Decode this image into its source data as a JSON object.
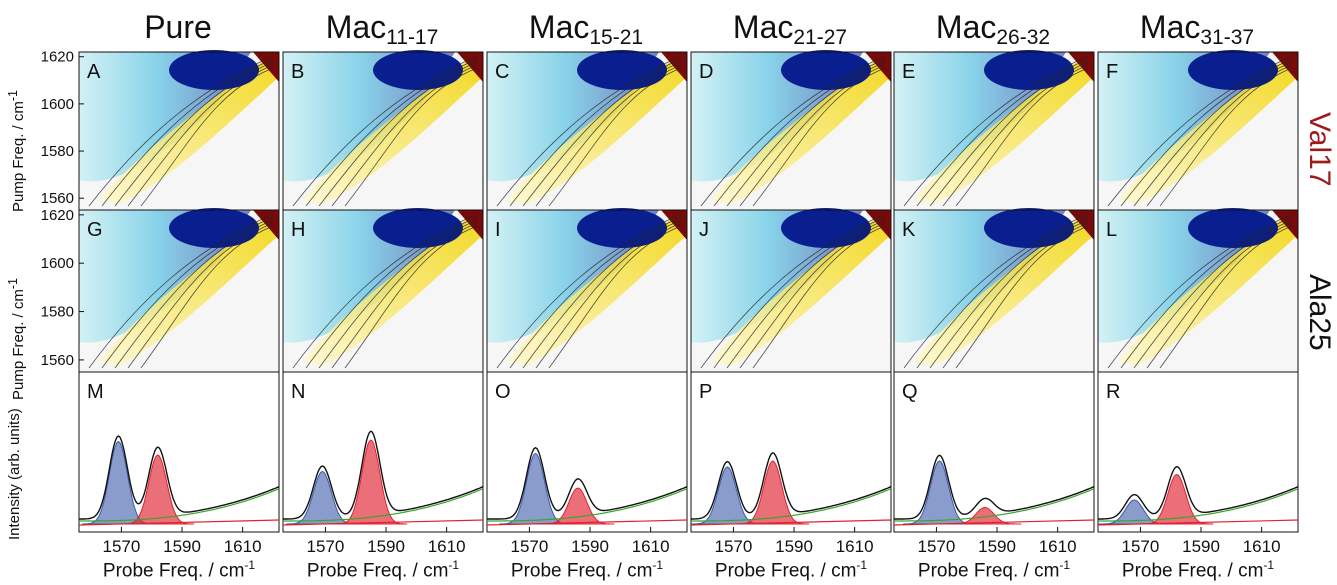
{
  "columns": [
    {
      "title": "Pure",
      "sub": ""
    },
    {
      "title": "Mac",
      "sub": "11-17"
    },
    {
      "title": "Mac",
      "sub": "15-21"
    },
    {
      "title": "Mac",
      "sub": "21-27"
    },
    {
      "title": "Mac",
      "sub": "26-32"
    },
    {
      "title": "Mac",
      "sub": "31-37"
    }
  ],
  "row_labels": [
    "Val17",
    "Ala25"
  ],
  "row_label_colors": [
    "#9b1c1c",
    "#111111"
  ],
  "panel_letters": [
    [
      "A",
      "B",
      "C",
      "D",
      "E",
      "F"
    ],
    [
      "G",
      "H",
      "I",
      "J",
      "K",
      "L"
    ],
    [
      "M",
      "N",
      "O",
      "P",
      "Q",
      "R"
    ]
  ],
  "y_axis_title_2d": "Pump Freq. / cm",
  "y_axis_title_1d": "Intensity (arb. units)",
  "x_axis_title": "Probe Freq. / cm",
  "unit_sup": "-1",
  "colors": {
    "negative": "#0a1f8f",
    "positive": "#f2d400",
    "red_peak": "#e0222f",
    "blue_peak": "#3b5aa8",
    "baseline": "#3aa52a"
  },
  "chart_data": [
    {
      "type": "heatmap",
      "description_row": "2D IR spectra, rows Val17 and Ala25, one panel per column",
      "x_ticks": [],
      "y_ticks": [
        1560,
        1580,
        1600,
        1620
      ],
      "ylim": [
        1555,
        1622
      ],
      "xlim": [
        1556,
        1622
      ]
    },
    {
      "type": "line",
      "x_ticks": [
        1570,
        1590,
        1610
      ],
      "xlim": [
        1556,
        1622
      ],
      "panels": [
        {
          "blue_peak": {
            "center": 1569,
            "height": 0.55
          },
          "red_peak": {
            "center": 1582,
            "height": 0.46
          }
        },
        {
          "blue_peak": {
            "center": 1569,
            "height": 0.35
          },
          "red_peak": {
            "center": 1585,
            "height": 0.56
          }
        },
        {
          "blue_peak": {
            "center": 1572,
            "height": 0.47
          },
          "red_peak": {
            "center": 1586,
            "height": 0.24
          }
        },
        {
          "blue_peak": {
            "center": 1568,
            "height": 0.38
          },
          "red_peak": {
            "center": 1583,
            "height": 0.42
          }
        },
        {
          "blue_peak": {
            "center": 1571,
            "height": 0.42
          },
          "red_peak": {
            "center": 1586,
            "height": 0.11
          }
        },
        {
          "blue_peak": {
            "center": 1568,
            "height": 0.16
          },
          "red_peak": {
            "center": 1582,
            "height": 0.33
          }
        }
      ]
    }
  ]
}
